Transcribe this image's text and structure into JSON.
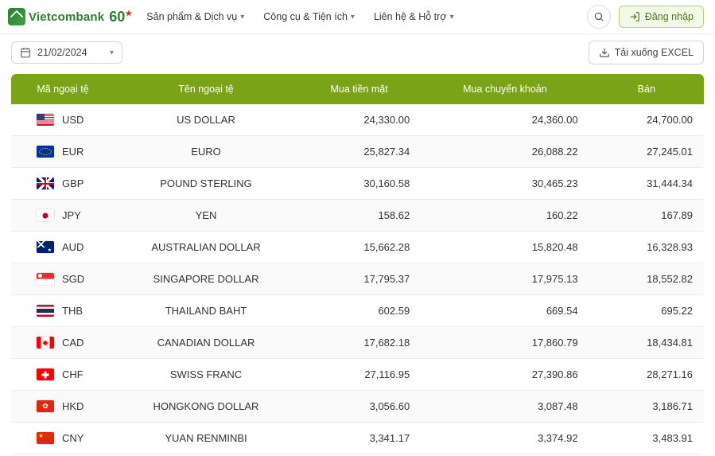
{
  "brand": {
    "name": "Vietcombank",
    "badge": "60"
  },
  "nav": {
    "items": [
      {
        "label": "Sản phẩm & Dịch vụ"
      },
      {
        "label": "Công cụ & Tiện ích"
      },
      {
        "label": "Liên hệ & Hỗ trợ"
      }
    ],
    "login": "Đăng nhập"
  },
  "toolbar": {
    "date": "21/02/2024",
    "excel": "Tải xuống EXCEL"
  },
  "table": {
    "headers": {
      "code": "Mã ngoại tệ",
      "name": "Tên ngoại tệ",
      "buy_cash": "Mua tiền mặt",
      "buy_transfer": "Mua chuyển khoản",
      "sell": "Bán"
    },
    "rows": [
      {
        "code": "USD",
        "flag": "flag-us",
        "name": "US DOLLAR",
        "buy_cash": "24,330.00",
        "buy_transfer": "24,360.00",
        "sell": "24,700.00"
      },
      {
        "code": "EUR",
        "flag": "flag-eu",
        "name": "EURO",
        "buy_cash": "25,827.34",
        "buy_transfer": "26,088.22",
        "sell": "27,245.01"
      },
      {
        "code": "GBP",
        "flag": "flag-gb",
        "name": "POUND STERLING",
        "buy_cash": "30,160.58",
        "buy_transfer": "30,465.23",
        "sell": "31,444.34"
      },
      {
        "code": "JPY",
        "flag": "flag-jp",
        "name": "YEN",
        "buy_cash": "158.62",
        "buy_transfer": "160.22",
        "sell": "167.89"
      },
      {
        "code": "AUD",
        "flag": "flag-au",
        "name": "AUSTRALIAN DOLLAR",
        "buy_cash": "15,662.28",
        "buy_transfer": "15,820.48",
        "sell": "16,328.93"
      },
      {
        "code": "SGD",
        "flag": "flag-sg",
        "name": "SINGAPORE DOLLAR",
        "buy_cash": "17,795.37",
        "buy_transfer": "17,975.13",
        "sell": "18,552.82"
      },
      {
        "code": "THB",
        "flag": "flag-th",
        "name": "THAILAND BAHT",
        "buy_cash": "602.59",
        "buy_transfer": "669.54",
        "sell": "695.22"
      },
      {
        "code": "CAD",
        "flag": "flag-ca",
        "name": "CANADIAN DOLLAR",
        "buy_cash": "17,682.18",
        "buy_transfer": "17,860.79",
        "sell": "18,434.81"
      },
      {
        "code": "CHF",
        "flag": "flag-ch",
        "name": "SWISS FRANC",
        "buy_cash": "27,116.95",
        "buy_transfer": "27,390.86",
        "sell": "28,271.16"
      },
      {
        "code": "HKD",
        "flag": "flag-hk",
        "name": "HONGKONG DOLLAR",
        "buy_cash": "3,056.60",
        "buy_transfer": "3,087.48",
        "sell": "3,186.71"
      },
      {
        "code": "CNY",
        "flag": "flag-cn",
        "name": "YUAN RENMINBI",
        "buy_cash": "3,341.17",
        "buy_transfer": "3,374.92",
        "sell": "3,483.91"
      }
    ]
  },
  "colors": {
    "accent_green": "#7aa318",
    "brand_green": "#2e7d32",
    "border": "#ececec"
  }
}
